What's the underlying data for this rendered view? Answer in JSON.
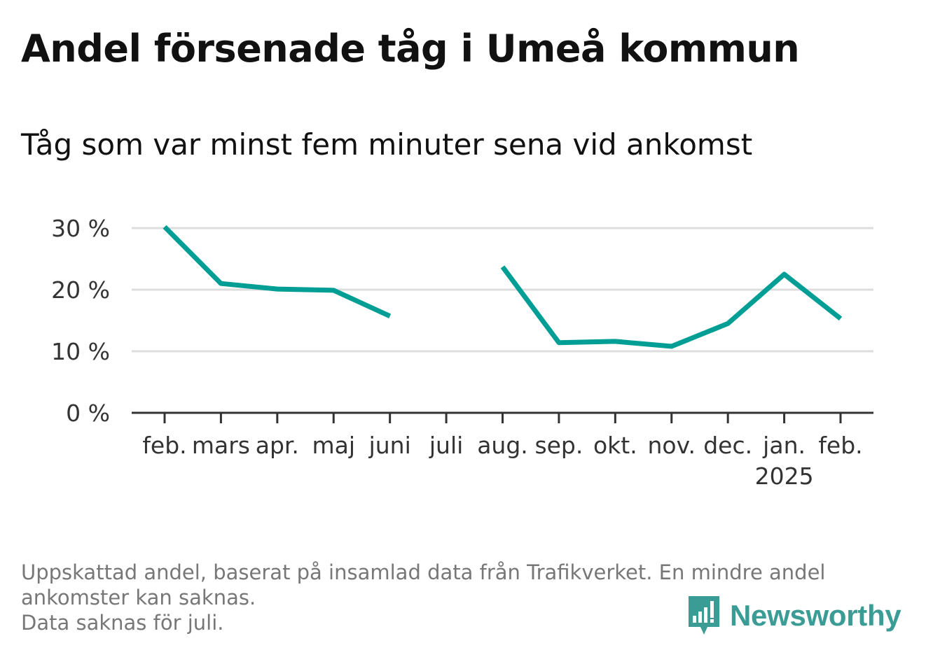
{
  "header": {
    "title": "Andel försenade tåg i Umeå kommun",
    "subtitle": "Tåg som var minst fem minuter sena vid ankomst"
  },
  "chart_data": {
    "type": "line",
    "categories": [
      "feb.",
      "mars",
      "apr.",
      "maj",
      "juni",
      "juli",
      "aug.",
      "sep.",
      "okt.",
      "nov.",
      "dec.",
      "jan.",
      "feb."
    ],
    "category_sublabels": [
      "",
      "",
      "",
      "",
      "",
      "",
      "",
      "",
      "",
      "",
      "",
      "2025",
      ""
    ],
    "series": [
      {
        "values": [
          30.2,
          21.0,
          20.1,
          19.9,
          15.7,
          null,
          23.7,
          11.4,
          11.6,
          10.8,
          14.5,
          22.5,
          15.3
        ]
      }
    ],
    "ylim": [
      0,
      30
    ],
    "yticks": [
      0,
      10,
      20,
      30
    ],
    "ytick_labels": [
      "0 %",
      "10 %",
      "20 %",
      "30 %"
    ],
    "grid": true,
    "line_color": "#009e94"
  },
  "footnote": {
    "line1": "Uppskattad andel, baserat på insamlad data från Trafikverket. En mindre andel",
    "line2": "ankomster kan saknas.",
    "line3": "Data saknas för juli."
  },
  "brand": {
    "name": "Newsworthy",
    "icon": "newsworthy-logo-icon",
    "color": "#3a9c94"
  }
}
